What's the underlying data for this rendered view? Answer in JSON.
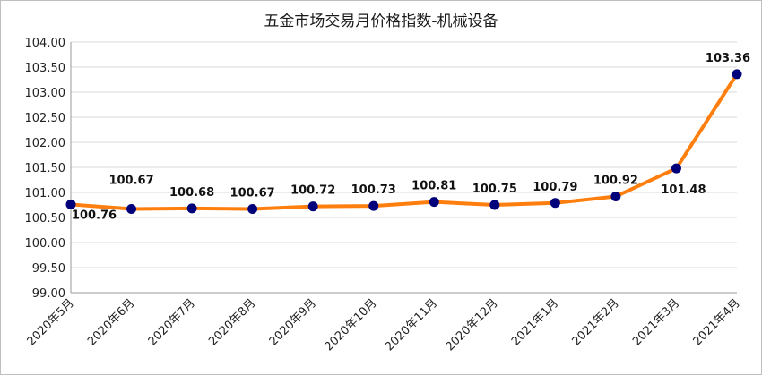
{
  "chart_data": {
    "type": "line",
    "title": "五金市场交易月价格指数-机械设备",
    "xlabel": "",
    "ylabel": "",
    "categories": [
      "2020年5月",
      "2020年6月",
      "2020年7月",
      "2020年8月",
      "2020年9月",
      "2020年10月",
      "2020年11月",
      "2020年12月",
      "2021年1月",
      "2021年2月",
      "2021年3月",
      "2021年4月"
    ],
    "series": [
      {
        "values": [
          100.76,
          100.67,
          100.68,
          100.67,
          100.72,
          100.73,
          100.81,
          100.75,
          100.79,
          100.92,
          101.48,
          103.36
        ]
      }
    ],
    "data_labels": [
      "100.76",
      "100.67",
      "100.68",
      "100.67",
      "100.72",
      "100.73",
      "100.81",
      "100.75",
      "100.79",
      "100.92",
      "101.48",
      "103.36"
    ],
    "ylim": [
      99.0,
      104.0
    ],
    "yticks": [
      "99.00",
      "99.50",
      "100.00",
      "100.50",
      "101.00",
      "101.50",
      "102.00",
      "102.50",
      "103.00",
      "103.50",
      "104.00"
    ],
    "grid": true,
    "legend": "none",
    "colors": {
      "line": "#ff7f0e",
      "marker": "#00007a",
      "grid": "#d9d9d9",
      "axis": "#999999"
    }
  }
}
